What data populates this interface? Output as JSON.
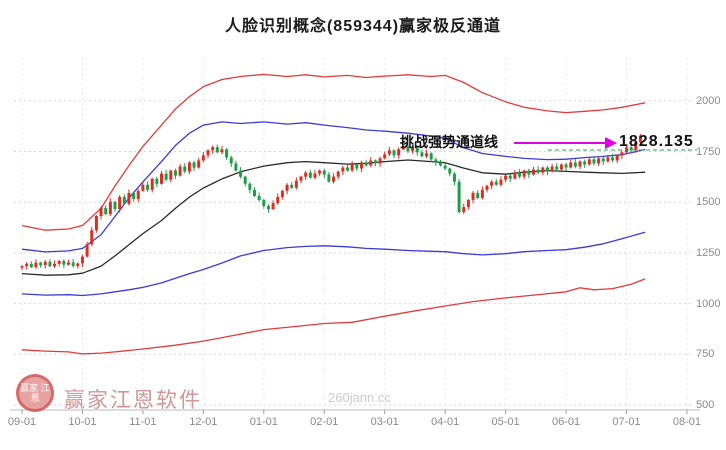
{
  "title": "人脸识别概念(859344)赢家极反通道",
  "annotation": {
    "text": "挑战强势通道线",
    "price_label": "1828.135",
    "arrow_color": "#e000e0",
    "guide_color": "#2e9e4b"
  },
  "watermark": {
    "logo_text": "赢家 江恩",
    "brand": "赢家江恩软件",
    "url_text": "260jann.cc"
  },
  "chart_data": {
    "type": "candlestick",
    "title": "人脸识别概念(859344)赢家极反通道",
    "symbol": "859344",
    "name": "人脸识别概念",
    "ylim": [
      500,
      2200
    ],
    "y_ticks": [
      500,
      750,
      1000,
      1250,
      1500,
      1750,
      2000
    ],
    "x_ticks": [
      "09-01",
      "10-01",
      "11-01",
      "12-01",
      "01-01",
      "02-01",
      "03-01",
      "04-01",
      "05-01",
      "06-01",
      "07-01",
      "08-01"
    ],
    "candles_per_month": 13,
    "up_color": "#d93025",
    "down_color": "#1e9e4a",
    "last_price": 1828.135,
    "closes": [
      1185,
      1196,
      1180,
      1202,
      1190,
      1206,
      1184,
      1196,
      1210,
      1192,
      1203,
      1186,
      1198,
      1232,
      1292,
      1362,
      1432,
      1472,
      1441,
      1502,
      1466,
      1526,
      1492,
      1546,
      1516,
      1556,
      1586,
      1561,
      1616,
      1591,
      1641,
      1611,
      1656,
      1631,
      1676,
      1651,
      1696,
      1671,
      1706,
      1731,
      1756,
      1771,
      1746,
      1761,
      1721,
      1691,
      1656,
      1626,
      1591,
      1561,
      1531,
      1511,
      1481,
      1466,
      1496,
      1526,
      1556,
      1586,
      1571,
      1606,
      1626,
      1646,
      1621,
      1641,
      1656,
      1636,
      1601,
      1626,
      1651,
      1671,
      1656,
      1686,
      1666,
      1696,
      1681,
      1706,
      1691,
      1716,
      1736,
      1756,
      1731,
      1761,
      1776,
      1751,
      1771,
      1746,
      1726,
      1741,
      1711,
      1696,
      1681,
      1666,
      1641,
      1601,
      1451,
      1476,
      1511,
      1546,
      1521,
      1561,
      1581,
      1601,
      1586,
      1611,
      1631,
      1616,
      1646,
      1626,
      1656,
      1636,
      1661,
      1646,
      1671,
      1651,
      1676,
      1661,
      1686,
      1671,
      1696,
      1676,
      1701,
      1686,
      1711,
      1691,
      1716,
      1701,
      1721,
      1706,
      1731,
      1746,
      1771,
      1756,
      1796,
      1828.135
    ],
    "bands": [
      {
        "name": "outer-upper-channel",
        "color": "#e23b3b",
        "points": [
          [
            0,
            1385
          ],
          [
            5,
            1362
          ],
          [
            10,
            1368
          ],
          [
            13,
            1385
          ],
          [
            17,
            1470
          ],
          [
            20,
            1580
          ],
          [
            23,
            1680
          ],
          [
            26,
            1775
          ],
          [
            30,
            1880
          ],
          [
            33,
            1960
          ],
          [
            36,
            2020
          ],
          [
            39,
            2070
          ],
          [
            43,
            2105
          ],
          [
            47,
            2120
          ],
          [
            52,
            2130
          ],
          [
            57,
            2120
          ],
          [
            61,
            2128
          ],
          [
            65,
            2118
          ],
          [
            70,
            2125
          ],
          [
            74,
            2115
          ],
          [
            78,
            2122
          ],
          [
            83,
            2128
          ],
          [
            88,
            2120
          ],
          [
            91,
            2125
          ],
          [
            95,
            2090
          ],
          [
            99,
            2040
          ],
          [
            104,
            1995
          ],
          [
            108,
            1968
          ],
          [
            113,
            1950
          ],
          [
            117,
            1942
          ],
          [
            121,
            1948
          ],
          [
            125,
            1955
          ],
          [
            129,
            1968
          ],
          [
            134,
            1990
          ]
        ]
      },
      {
        "name": "inner-upper-channel",
        "color": "#3b3bd6",
        "points": [
          [
            0,
            1268
          ],
          [
            5,
            1255
          ],
          [
            10,
            1260
          ],
          [
            13,
            1272
          ],
          [
            17,
            1340
          ],
          [
            20,
            1430
          ],
          [
            23,
            1520
          ],
          [
            26,
            1600
          ],
          [
            30,
            1700
          ],
          [
            33,
            1780
          ],
          [
            36,
            1840
          ],
          [
            39,
            1880
          ],
          [
            43,
            1896
          ],
          [
            47,
            1888
          ],
          [
            52,
            1896
          ],
          [
            57,
            1885
          ],
          [
            61,
            1892
          ],
          [
            65,
            1880
          ],
          [
            70,
            1868
          ],
          [
            74,
            1856
          ],
          [
            78,
            1850
          ],
          [
            83,
            1840
          ],
          [
            88,
            1826
          ],
          [
            91,
            1815
          ],
          [
            95,
            1768
          ],
          [
            99,
            1740
          ],
          [
            104,
            1726
          ],
          [
            108,
            1716
          ],
          [
            113,
            1710
          ],
          [
            117,
            1712
          ],
          [
            121,
            1720
          ],
          [
            125,
            1726
          ],
          [
            129,
            1734
          ],
          [
            134,
            1760
          ]
        ]
      },
      {
        "name": "middle-line",
        "color": "#2a2a2a",
        "points": [
          [
            0,
            1148
          ],
          [
            5,
            1140
          ],
          [
            10,
            1142
          ],
          [
            13,
            1150
          ],
          [
            17,
            1185
          ],
          [
            20,
            1235
          ],
          [
            23,
            1290
          ],
          [
            26,
            1345
          ],
          [
            30,
            1410
          ],
          [
            33,
            1470
          ],
          [
            36,
            1525
          ],
          [
            39,
            1570
          ],
          [
            43,
            1615
          ],
          [
            47,
            1650
          ],
          [
            52,
            1678
          ],
          [
            57,
            1695
          ],
          [
            61,
            1700
          ],
          [
            65,
            1695
          ],
          [
            70,
            1688
          ],
          [
            74,
            1692
          ],
          [
            78,
            1700
          ],
          [
            83,
            1708
          ],
          [
            88,
            1700
          ],
          [
            91,
            1695
          ],
          [
            95,
            1668
          ],
          [
            99,
            1645
          ],
          [
            104,
            1638
          ],
          [
            108,
            1648
          ],
          [
            113,
            1656
          ],
          [
            117,
            1652
          ],
          [
            121,
            1648
          ],
          [
            125,
            1645
          ],
          [
            129,
            1642
          ],
          [
            134,
            1648
          ]
        ]
      },
      {
        "name": "inner-lower-channel",
        "color": "#3b3bd6",
        "points": [
          [
            0,
            1048
          ],
          [
            5,
            1042
          ],
          [
            10,
            1044
          ],
          [
            13,
            1040
          ],
          [
            17,
            1048
          ],
          [
            20,
            1058
          ],
          [
            23,
            1068
          ],
          [
            26,
            1080
          ],
          [
            30,
            1102
          ],
          [
            33,
            1125
          ],
          [
            36,
            1148
          ],
          [
            39,
            1168
          ],
          [
            43,
            1200
          ],
          [
            47,
            1235
          ],
          [
            52,
            1262
          ],
          [
            57,
            1276
          ],
          [
            61,
            1282
          ],
          [
            65,
            1285
          ],
          [
            70,
            1280
          ],
          [
            74,
            1272
          ],
          [
            78,
            1268
          ],
          [
            83,
            1262
          ],
          [
            88,
            1258
          ],
          [
            91,
            1256
          ],
          [
            95,
            1246
          ],
          [
            99,
            1240
          ],
          [
            104,
            1246
          ],
          [
            108,
            1256
          ],
          [
            113,
            1262
          ],
          [
            117,
            1266
          ],
          [
            121,
            1278
          ],
          [
            125,
            1295
          ],
          [
            129,
            1320
          ],
          [
            134,
            1352
          ]
        ]
      },
      {
        "name": "outer-lower-channel",
        "color": "#e23b3b",
        "points": [
          [
            0,
            772
          ],
          [
            5,
            766
          ],
          [
            10,
            762
          ],
          [
            13,
            752
          ],
          [
            17,
            756
          ],
          [
            20,
            762
          ],
          [
            26,
            776
          ],
          [
            33,
            795
          ],
          [
            39,
            815
          ],
          [
            46,
            845
          ],
          [
            52,
            872
          ],
          [
            58,
            885
          ],
          [
            65,
            902
          ],
          [
            71,
            908
          ],
          [
            78,
            938
          ],
          [
            84,
            962
          ],
          [
            91,
            988
          ],
          [
            97,
            1010
          ],
          [
            104,
            1028
          ],
          [
            110,
            1042
          ],
          [
            117,
            1058
          ],
          [
            120,
            1078
          ],
          [
            123,
            1068
          ],
          [
            127,
            1074
          ],
          [
            131,
            1095
          ],
          [
            134,
            1122
          ]
        ]
      }
    ]
  }
}
